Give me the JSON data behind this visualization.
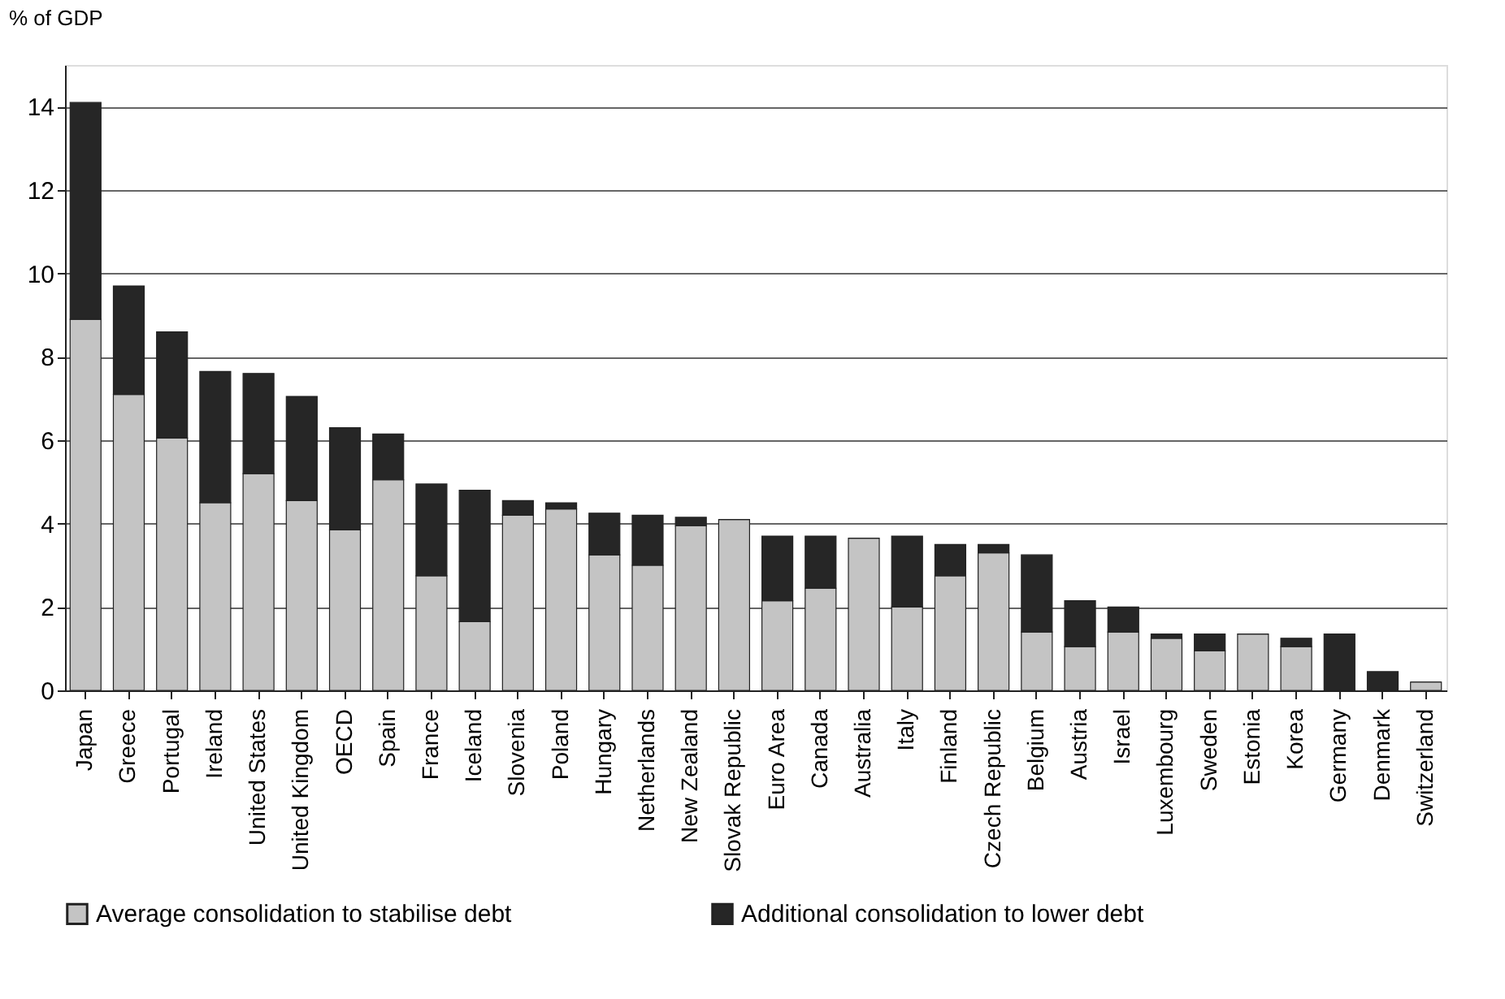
{
  "chart_data": {
    "type": "bar",
    "stacked": true,
    "ylabel": "% of GDP",
    "categories": [
      "Japan",
      "Greece",
      "Portugal",
      "Ireland",
      "United States",
      "United Kingdom",
      "OECD",
      "Spain",
      "France",
      "Iceland",
      "Slovenia",
      "Poland",
      "Hungary",
      "Netherlands",
      "New Zealand",
      "Slovak Republic",
      "Euro Area",
      "Canada",
      "Australia",
      "Italy",
      "Finland",
      "Czech Republic",
      "Belgium",
      "Austria",
      "Israel",
      "Luxembourg",
      "Sweden",
      "Estonia",
      "Korea",
      "Germany",
      "Denmark",
      "Switzerland"
    ],
    "series": [
      {
        "name": "Average consolidation to stabilise debt",
        "color": "#c4c4c4",
        "values": [
          8.9,
          7.1,
          6.05,
          4.5,
          5.2,
          4.55,
          3.85,
          5.05,
          2.75,
          1.65,
          4.2,
          4.35,
          3.25,
          3.0,
          3.95,
          4.1,
          2.15,
          2.45,
          3.65,
          2.0,
          2.75,
          3.3,
          1.4,
          1.05,
          1.4,
          1.25,
          0.95,
          1.35,
          1.05,
          0,
          0,
          0.2
        ]
      },
      {
        "name": "Additional consolidation to lower debt",
        "color": "#262626",
        "values": [
          5.2,
          2.6,
          2.55,
          3.15,
          2.4,
          2.5,
          2.45,
          1.1,
          2.2,
          3.15,
          0.35,
          0.15,
          1.0,
          1.2,
          0.2,
          0,
          1.55,
          1.25,
          0,
          1.7,
          0.75,
          0.2,
          1.85,
          1.1,
          0.6,
          0.1,
          0.4,
          0,
          0.2,
          1.35,
          0.45,
          0
        ]
      }
    ],
    "ylim": [
      0,
      15
    ],
    "yticks": [
      0,
      2,
      4,
      6,
      8,
      10,
      12,
      14
    ],
    "grid": "y",
    "legend": "bottom"
  }
}
